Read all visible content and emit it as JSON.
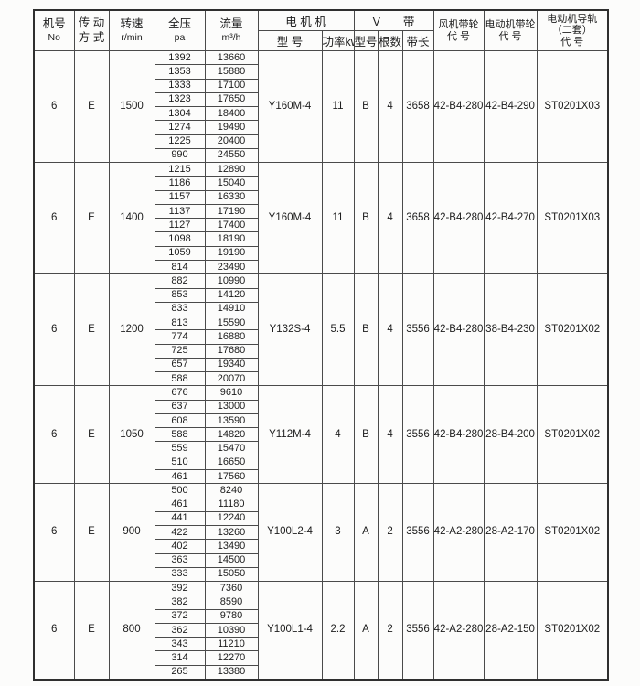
{
  "header": {
    "machine_no": {
      "l1": "机号",
      "l2": "No"
    },
    "drive": {
      "l1": "传 动",
      "l2": "方 式"
    },
    "speed": {
      "l1": "转速",
      "l2": "r/min"
    },
    "pressure": {
      "l1": "全压",
      "l2": "pa"
    },
    "flow": {
      "l1": "流量",
      "l2": "m³/h"
    },
    "motor_group": "电 机  机",
    "motor_model": "型 号",
    "motor_power": "功率kw",
    "vbelt_group": "V　　带",
    "belt_type": "型号",
    "belt_count": "根数",
    "belt_length": "带长",
    "fan_pulley": {
      "l1": "风机带轮",
      "l2": "代  号"
    },
    "motor_pulley": {
      "l1": "电动机带轮",
      "l2": "代  号"
    },
    "rail": {
      "l1": "电动机导轨",
      "l2": "（二套）",
      "l3": "代 号"
    }
  },
  "blocks": [
    {
      "no": "6",
      "drive": "E",
      "rpm": "1500",
      "rows": [
        [
          "1392",
          "13660"
        ],
        [
          "1353",
          "15880"
        ],
        [
          "1333",
          "17100"
        ],
        [
          "1323",
          "17650"
        ],
        [
          "1304",
          "18400"
        ],
        [
          "1274",
          "19490"
        ],
        [
          "1225",
          "20400"
        ],
        [
          "990",
          "24550"
        ]
      ],
      "motor_model": "Y160M-4",
      "power_kw": "11",
      "belt_type": "B",
      "belt_count": "4",
      "belt_length": "3658",
      "fan_pulley_code": "42-B4-280",
      "motor_pulley_code": "42-B4-290",
      "rail_code": "ST0201X03"
    },
    {
      "no": "6",
      "drive": "E",
      "rpm": "1400",
      "rows": [
        [
          "1215",
          "12890"
        ],
        [
          "1186",
          "15040"
        ],
        [
          "1157",
          "16330"
        ],
        [
          "1137",
          "17190"
        ],
        [
          "1127",
          "17400"
        ],
        [
          "1098",
          "18190"
        ],
        [
          "1059",
          "19190"
        ],
        [
          "814",
          "23490"
        ]
      ],
      "motor_model": "Y160M-4",
      "power_kw": "11",
      "belt_type": "B",
      "belt_count": "4",
      "belt_length": "3658",
      "fan_pulley_code": "42-B4-280",
      "motor_pulley_code": "42-B4-270",
      "rail_code": "ST0201X03"
    },
    {
      "no": "6",
      "drive": "E",
      "rpm": "1200",
      "rows": [
        [
          "882",
          "10990"
        ],
        [
          "853",
          "14120"
        ],
        [
          "833",
          "14910"
        ],
        [
          "813",
          "15590"
        ],
        [
          "774",
          "16880"
        ],
        [
          "725",
          "17680"
        ],
        [
          "657",
          "19340"
        ],
        [
          "588",
          "20070"
        ]
      ],
      "motor_model": "Y132S-4",
      "power_kw": "5.5",
      "belt_type": "B",
      "belt_count": "4",
      "belt_length": "3556",
      "fan_pulley_code": "42-B4-280",
      "motor_pulley_code": "38-B4-230",
      "rail_code": "ST0201X02"
    },
    {
      "no": "6",
      "drive": "E",
      "rpm": "1050",
      "rows": [
        [
          "676",
          "9610"
        ],
        [
          "637",
          "13000"
        ],
        [
          "608",
          "13590"
        ],
        [
          "588",
          "14820"
        ],
        [
          "559",
          "15470"
        ],
        [
          "510",
          "16650"
        ],
        [
          "461",
          "17560"
        ]
      ],
      "motor_model": "Y112M-4",
      "power_kw": "4",
      "belt_type": "B",
      "belt_count": "4",
      "belt_length": "3556",
      "fan_pulley_code": "42-B4-280",
      "motor_pulley_code": "28-B4-200",
      "rail_code": "ST0201X02"
    },
    {
      "no": "6",
      "drive": "E",
      "rpm": "900",
      "rows": [
        [
          "500",
          "8240"
        ],
        [
          "461",
          "11180"
        ],
        [
          "441",
          "12240"
        ],
        [
          "422",
          "13260"
        ],
        [
          "402",
          "13490"
        ],
        [
          "363",
          "14500"
        ],
        [
          "333",
          "15050"
        ]
      ],
      "motor_model": "Y100L2-4",
      "power_kw": "3",
      "belt_type": "A",
      "belt_count": "2",
      "belt_length": "3556",
      "fan_pulley_code": "42-A2-280",
      "motor_pulley_code": "28-A2-170",
      "rail_code": "ST0201X02"
    },
    {
      "no": "6",
      "drive": "E",
      "rpm": "800",
      "rows": [
        [
          "392",
          "7360"
        ],
        [
          "382",
          "8590"
        ],
        [
          "372",
          "9780"
        ],
        [
          "362",
          "10390"
        ],
        [
          "343",
          "11210"
        ],
        [
          "314",
          "12270"
        ],
        [
          "265",
          "13380"
        ]
      ],
      "motor_model": "Y100L1-4",
      "power_kw": "2.2",
      "belt_type": "A",
      "belt_count": "2",
      "belt_length": "3556",
      "fan_pulley_code": "42-A2-280",
      "motor_pulley_code": "28-A2-150",
      "rail_code": "ST0201X02"
    }
  ]
}
